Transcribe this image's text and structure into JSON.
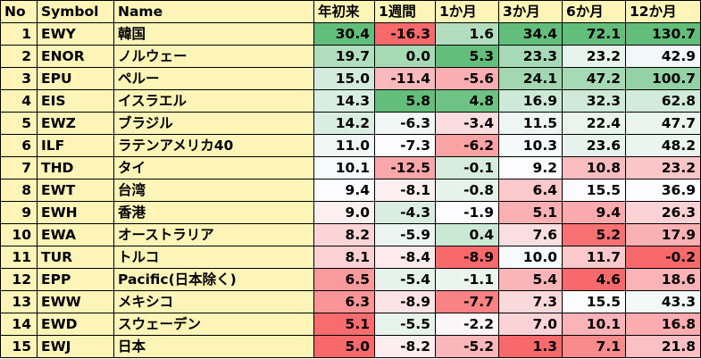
{
  "headers": [
    "No",
    "Symbol",
    "Name",
    "年初来",
    "1週間",
    "1か月",
    "3か月",
    "6か月",
    "12か月"
  ],
  "rows": [
    {
      "no": "1",
      "symbol": "EWY",
      "name": "韓国",
      "values": [
        "30.4",
        "-16.3",
        "1.6",
        "34.4",
        "72.1",
        "130.7"
      ]
    },
    {
      "no": "2",
      "symbol": "ENOR",
      "name": "ノルウェー",
      "values": [
        "19.7",
        "0.0",
        "5.3",
        "23.3",
        "23.2",
        "42.9"
      ]
    },
    {
      "no": "3",
      "symbol": "EPU",
      "name": "ペルー",
      "values": [
        "15.0",
        "-11.4",
        "-5.6",
        "24.1",
        "47.2",
        "100.7"
      ]
    },
    {
      "no": "4",
      "symbol": "EIS",
      "name": "イスラエル",
      "values": [
        "14.3",
        "5.8",
        "4.8",
        "16.9",
        "32.3",
        "62.8"
      ]
    },
    {
      "no": "5",
      "symbol": "EWZ",
      "name": "ブラジル",
      "values": [
        "14.2",
        "-6.3",
        "-3.4",
        "11.5",
        "22.4",
        "47.7"
      ]
    },
    {
      "no": "6",
      "symbol": "ILF",
      "name": "ラテンアメリカ40",
      "values": [
        "11.0",
        "-7.3",
        "-6.2",
        "10.3",
        "23.6",
        "48.2"
      ]
    },
    {
      "no": "7",
      "symbol": "THD",
      "name": "タイ",
      "values": [
        "10.1",
        "-12.5",
        "-0.1",
        "9.2",
        "10.8",
        "23.2"
      ]
    },
    {
      "no": "8",
      "symbol": "EWT",
      "name": "台湾",
      "values": [
        "9.4",
        "-8.1",
        "-0.8",
        "6.4",
        "15.5",
        "36.9"
      ]
    },
    {
      "no": "9",
      "symbol": "EWH",
      "name": "香港",
      "values": [
        "9.0",
        "-4.3",
        "-1.9",
        "5.1",
        "9.4",
        "26.3"
      ]
    },
    {
      "no": "10",
      "symbol": "EWA",
      "name": "オーストラリア",
      "values": [
        "8.2",
        "-5.9",
        "0.4",
        "7.6",
        "5.2",
        "17.9"
      ]
    },
    {
      "no": "11",
      "symbol": "TUR",
      "name": "トルコ",
      "values": [
        "8.1",
        "-8.4",
        "-8.9",
        "10.0",
        "11.7",
        "-0.2"
      ]
    },
    {
      "no": "12",
      "symbol": "EPP",
      "name": "Pacific(日本除く)",
      "values": [
        "6.5",
        "-5.4",
        "-1.1",
        "5.4",
        "4.6",
        "18.6"
      ]
    },
    {
      "no": "13",
      "symbol": "EWW",
      "name": "メキシコ",
      "values": [
        "6.3",
        "-8.9",
        "-7.7",
        "7.3",
        "15.5",
        "43.3"
      ]
    },
    {
      "no": "14",
      "symbol": "EWD",
      "name": "スウェーデン",
      "values": [
        "5.1",
        "-5.5",
        "-2.2",
        "7.0",
        "10.1",
        "16.8"
      ]
    },
    {
      "no": "15",
      "symbol": "EWJ",
      "name": "日本",
      "values": [
        "5.0",
        "-8.2",
        "-5.2",
        "1.3",
        "7.1",
        "21.8"
      ]
    }
  ],
  "colors": {
    "header_bg": "#fdf4b8",
    "label_bg": "#fdf4b8",
    "high": "#63be7b",
    "mid": "#fcfcff",
    "low": "#f8696b"
  }
}
